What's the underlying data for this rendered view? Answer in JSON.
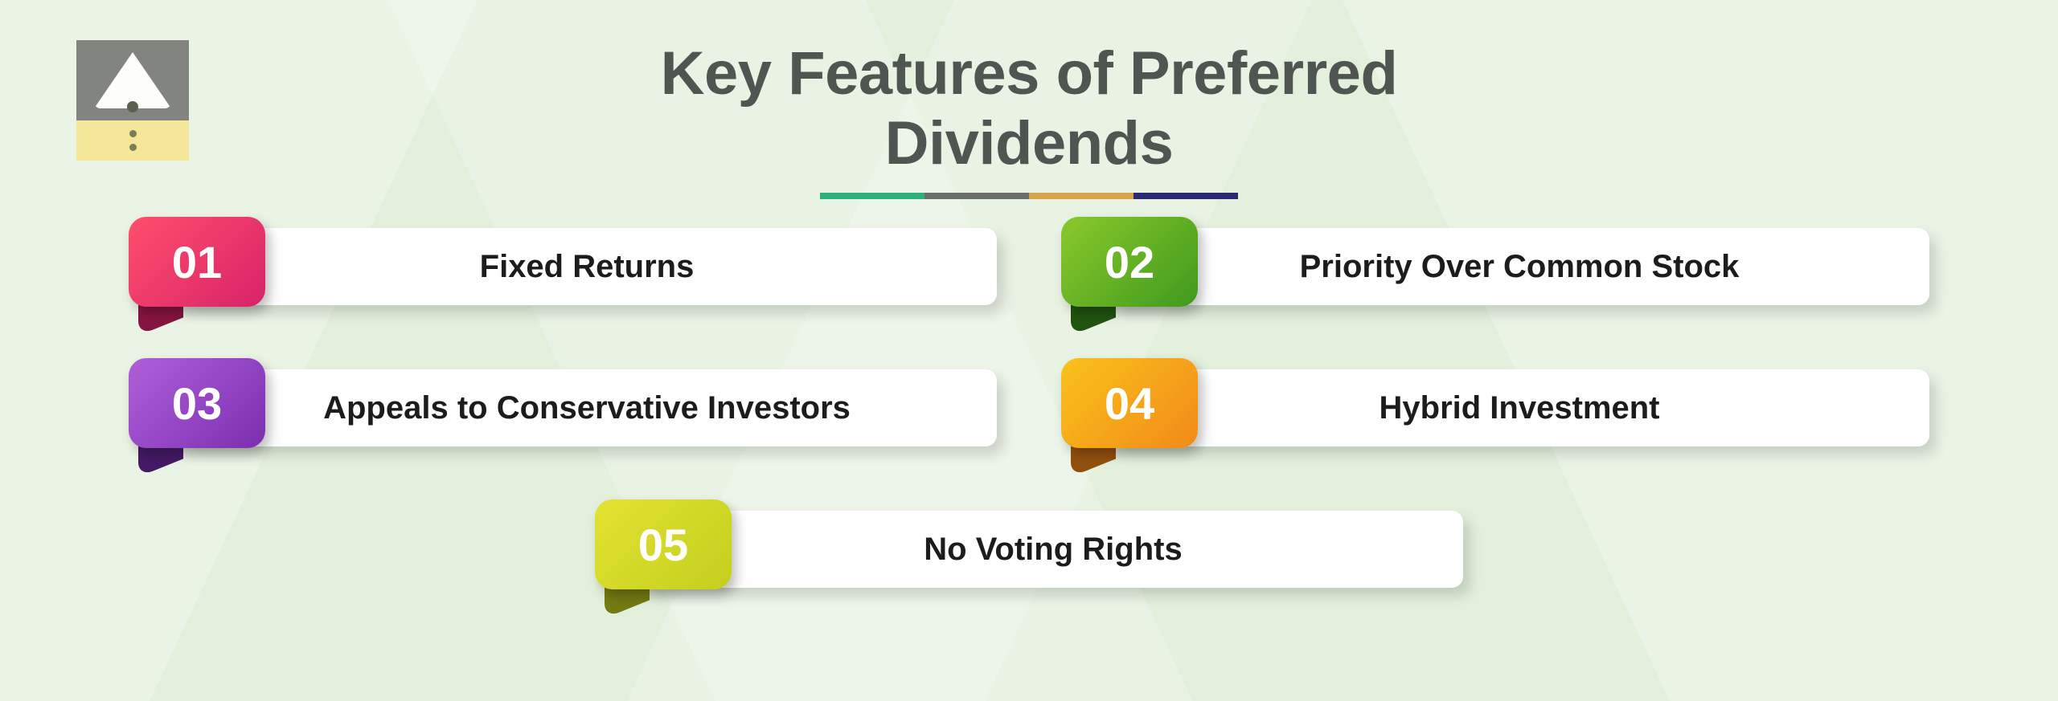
{
  "title": "Key Features of Preferred Dividends",
  "title_color": "#4f5651",
  "title_fontsize": 76,
  "background_color": "#e3f0dc",
  "underline_colors": [
    "#2db07a",
    "#6a6e69",
    "#d6a24c",
    "#2a2a73"
  ],
  "logo": {
    "top_bg": "#82847f",
    "triangle": "#fdfdfa",
    "bottom_bg": "#f4e79a",
    "dot_color": "#5a6050"
  },
  "items": [
    {
      "num": "01",
      "label": "Fixed Returns",
      "gradient_from": "#ff4f6b",
      "gradient_to": "#d6236a",
      "tail": "#b11c56"
    },
    {
      "num": "02",
      "label": "Priority Over Common Stock",
      "gradient_from": "#8ac92a",
      "gradient_to": "#3f9a1e",
      "tail": "#2e6f16"
    },
    {
      "num": "03",
      "label": "Appeals to Conservative Investors",
      "gradient_from": "#b05fd9",
      "gradient_to": "#7a2fb0",
      "tail": "#5a2285"
    },
    {
      "num": "04",
      "label": "Hybrid Investment",
      "gradient_from": "#f9c21a",
      "gradient_to": "#f28a1a",
      "tail": "#c36a12"
    },
    {
      "num": "05",
      "label": "No Voting Rights",
      "gradient_from": "#e3e233",
      "gradient_to": "#c3cf1e",
      "tail": "#9aa317"
    }
  ],
  "item_label_fontsize": 40,
  "item_label_color": "#1c1c1c",
  "badge_num_fontsize": 56,
  "bar_bg": "#ffffff"
}
